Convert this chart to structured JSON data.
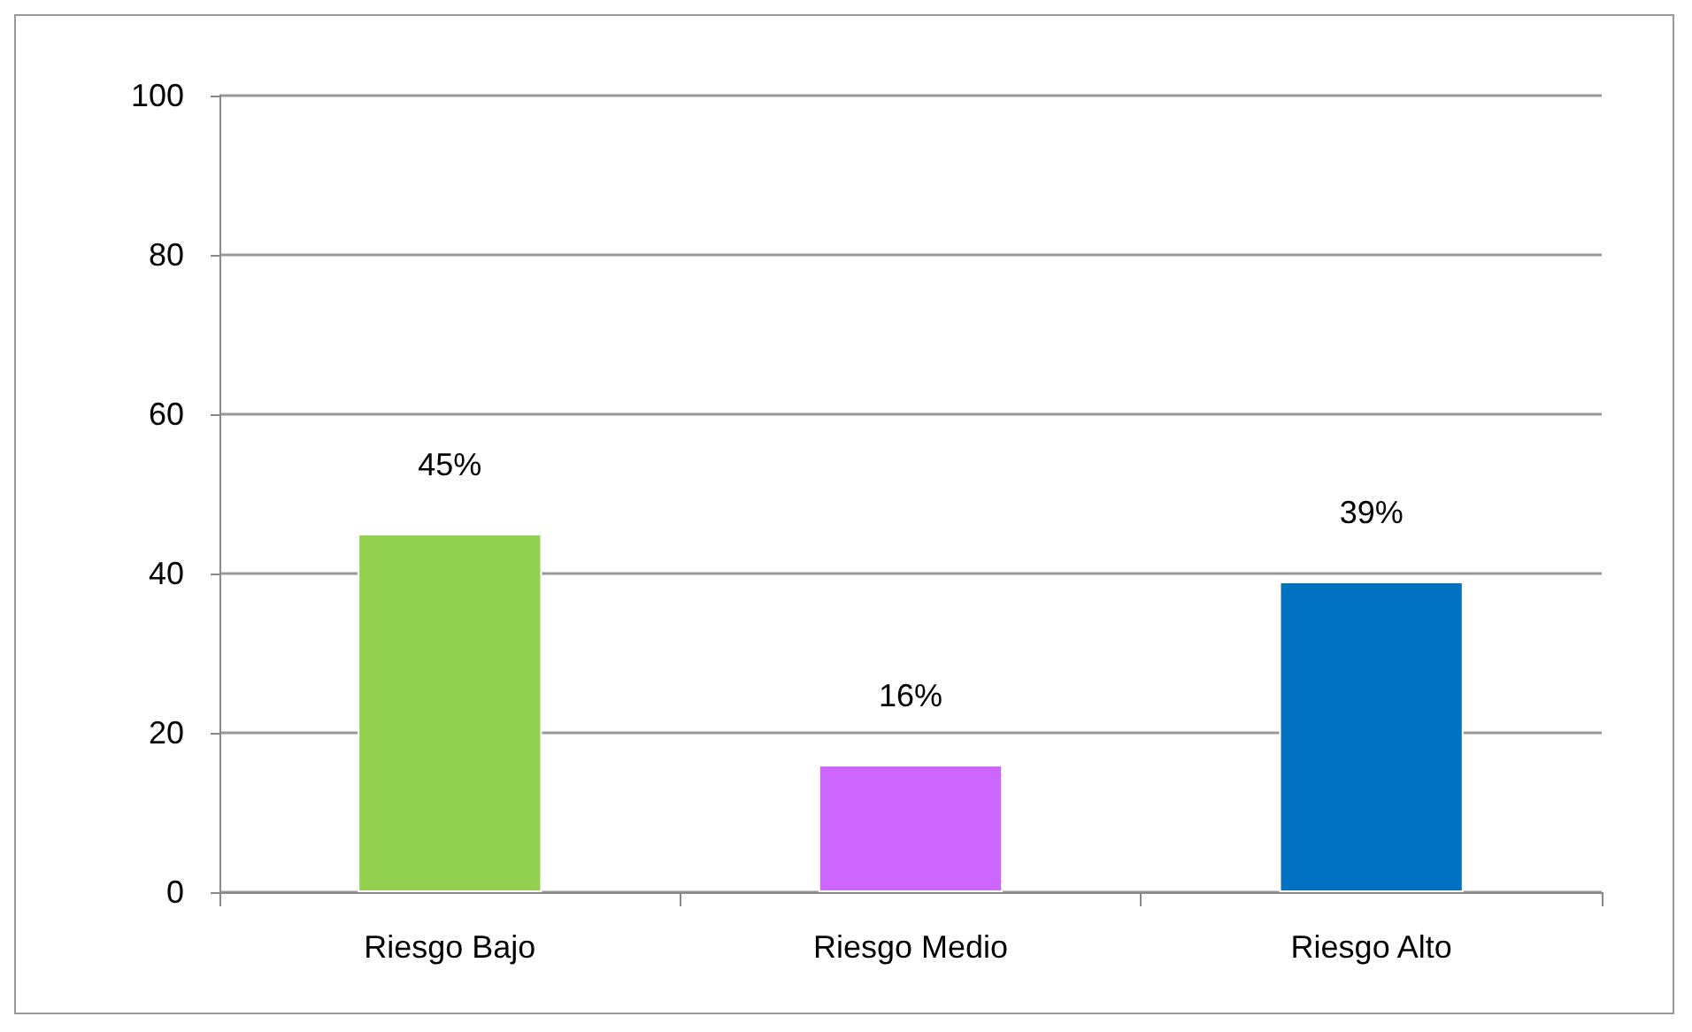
{
  "chart_data": {
    "type": "bar",
    "categories": [
      "Riesgo Bajo",
      "Riesgo Medio",
      "Riesgo Alto"
    ],
    "values": [
      45,
      16,
      39
    ],
    "colors": [
      "#92d050",
      "#cc66ff",
      "#0070c0"
    ],
    "value_labels": [
      "45%",
      "16%",
      "39%"
    ],
    "ylim": [
      0,
      100
    ],
    "yticks": [
      0,
      20,
      40,
      60,
      80,
      100
    ],
    "grid": "y"
  }
}
